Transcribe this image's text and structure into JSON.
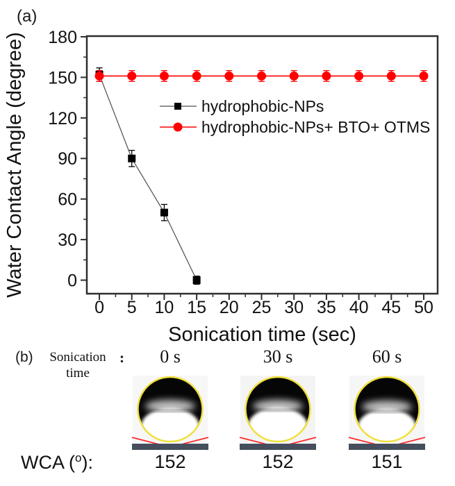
{
  "panel_a": {
    "label": "(a)"
  },
  "chart_data": {
    "type": "line",
    "title": "",
    "xlabel": "Sonication time (sec)",
    "ylabel": "Water Contact Angle (degree)",
    "xlim": [
      -1.93,
      52.14
    ],
    "ylim": [
      -10,
      180.5
    ],
    "x_ticks": [
      0,
      5,
      10,
      15,
      20,
      25,
      30,
      35,
      40,
      45,
      50
    ],
    "y_ticks": [
      0,
      30,
      60,
      90,
      120,
      150,
      180
    ],
    "x_minor_step": 2.5,
    "y_minor_step": 15,
    "grid": false,
    "legend_position": "inside-center-right",
    "series": [
      {
        "name": "hydrophobic-NPs",
        "marker": "square",
        "color": "#000000",
        "line_color": "#4d4d4d",
        "line_width": 1.2,
        "x": [
          0,
          5,
          10,
          15
        ],
        "y": [
          152,
          90,
          50,
          0
        ],
        "yerr": [
          5,
          6,
          6,
          3
        ]
      },
      {
        "name": "hydrophobic-NPs+ BTO+ OTMS",
        "marker": "circle",
        "color": "#ff0000",
        "line_color": "#ff0000",
        "line_width": 1.6,
        "x": [
          0,
          5,
          10,
          15,
          20,
          25,
          30,
          35,
          40,
          45,
          50
        ],
        "y": [
          151,
          151,
          151,
          151,
          151,
          151,
          151,
          151,
          151,
          151,
          151
        ],
        "yerr": [
          4,
          4,
          4,
          4,
          4,
          4,
          4,
          4,
          4,
          4,
          4
        ]
      }
    ]
  },
  "panel_b": {
    "label": "(b)",
    "row_label_line1": "Sonication",
    "row_label_line2": "time",
    "colon": ":",
    "droplets": [
      {
        "time": "0 s",
        "wca": "152"
      },
      {
        "time": "30 s",
        "wca": "152"
      },
      {
        "time": "60 s",
        "wca": "151"
      }
    ],
    "wca_label": {
      "prefix": "WCA (",
      "sup": "o",
      "suffix": "):"
    },
    "colors": {
      "substrate": "#454e5c",
      "droplet_outline": "#f0e03c",
      "tangent_line": "#ff2b2b"
    }
  }
}
